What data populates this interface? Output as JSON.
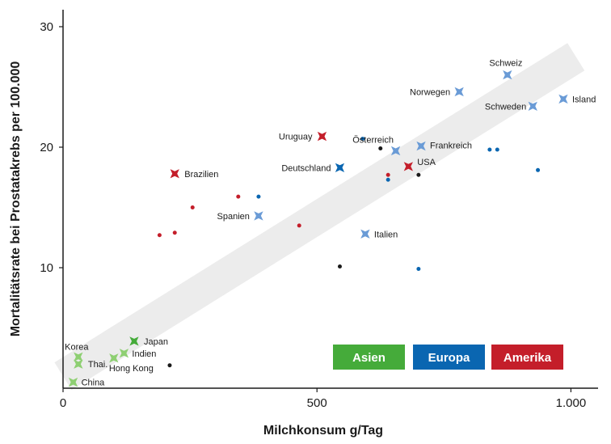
{
  "chart_data": {
    "type": "scatter",
    "title": "",
    "xlabel": "Milchkonsum g/Tag",
    "ylabel": "Mortalitätsrate bei Prostatakrebs per 100.000",
    "xlim": [
      0,
      1050
    ],
    "ylim": [
      0,
      32
    ],
    "x_ticks": [
      {
        "value": 0,
        "label": "0"
      },
      {
        "value": 500,
        "label": "500"
      },
      {
        "value": 1000,
        "label": "1.000"
      }
    ],
    "y_ticks": [
      {
        "value": 10,
        "label": "10"
      },
      {
        "value": 20,
        "label": "20"
      },
      {
        "value": 30,
        "label": "30"
      }
    ],
    "grid": false,
    "trend_band": {
      "from": [
        0,
        1.0
      ],
      "to": [
        1010,
        27.5
      ],
      "color": "#ececec"
    },
    "legend": {
      "placement": "bottom-right",
      "items": [
        {
          "label": "Asien",
          "color": "#45ab3a"
        },
        {
          "label": "Europa",
          "color": "#0a66b1"
        },
        {
          "label": "Amerika",
          "color": "#c41e2a"
        }
      ]
    },
    "labeled_points": [
      {
        "name": "Korea",
        "x": 30,
        "y": 2.6,
        "color": "#8ecf72"
      },
      {
        "name": "Thai.",
        "x": 30,
        "y": 2.0,
        "color": "#8ecf72"
      },
      {
        "name": "China",
        "x": 20,
        "y": 0.5,
        "color": "#8ecf72"
      },
      {
        "name": "Japan",
        "x": 140,
        "y": 3.9,
        "color": "#45ab3a"
      },
      {
        "name": "Indien",
        "x": 120,
        "y": 2.9,
        "color": "#8ecf72"
      },
      {
        "name": "Hong Kong",
        "x": 100,
        "y": 2.5,
        "color": "#8ecf72"
      },
      {
        "name": "Brazilien",
        "x": 220,
        "y": 17.8,
        "color": "#c41e2a"
      },
      {
        "name": "Uruguay",
        "x": 510,
        "y": 20.9,
        "color": "#c41e2a"
      },
      {
        "name": "USA",
        "x": 680,
        "y": 18.4,
        "color": "#c41e2a"
      },
      {
        "name": "Deutschland",
        "x": 545,
        "y": 18.3,
        "color": "#0a66b1"
      },
      {
        "name": "Spanien",
        "x": 385,
        "y": 14.3,
        "color": "#6a9bd6"
      },
      {
        "name": "Italien",
        "x": 595,
        "y": 12.8,
        "color": "#6a9bd6"
      },
      {
        "name": "Österreich",
        "x": 655,
        "y": 19.7,
        "color": "#6a9bd6"
      },
      {
        "name": "Frankreich",
        "x": 705,
        "y": 20.1,
        "color": "#6a9bd6"
      },
      {
        "name": "Norwegen",
        "x": 780,
        "y": 24.6,
        "color": "#6a9bd6"
      },
      {
        "name": "Schweiz",
        "x": 875,
        "y": 26.0,
        "color": "#6a9bd6"
      },
      {
        "name": "Schweden",
        "x": 925,
        "y": 23.4,
        "color": "#6a9bd6"
      },
      {
        "name": "Island",
        "x": 985,
        "y": 24.0,
        "color": "#6a9bd6"
      }
    ],
    "dots": [
      {
        "x": 190,
        "y": 12.7,
        "color": "#c41e2a"
      },
      {
        "x": 220,
        "y": 12.9,
        "color": "#c41e2a"
      },
      {
        "x": 255,
        "y": 15.0,
        "color": "#c41e2a"
      },
      {
        "x": 345,
        "y": 15.9,
        "color": "#c41e2a"
      },
      {
        "x": 465,
        "y": 13.5,
        "color": "#c41e2a"
      },
      {
        "x": 640,
        "y": 17.7,
        "color": "#c41e2a"
      },
      {
        "x": 385,
        "y": 15.9,
        "color": "#0a66b1"
      },
      {
        "x": 590,
        "y": 20.7,
        "color": "#0a66b1"
      },
      {
        "x": 640,
        "y": 17.3,
        "color": "#0a66b1"
      },
      {
        "x": 700,
        "y": 9.9,
        "color": "#0a66b1"
      },
      {
        "x": 840,
        "y": 19.8,
        "color": "#0a66b1"
      },
      {
        "x": 855,
        "y": 19.8,
        "color": "#0a66b1"
      },
      {
        "x": 935,
        "y": 18.1,
        "color": "#0a66b1"
      },
      {
        "x": 210,
        "y": 1.9,
        "color": "#1a1a1a"
      },
      {
        "x": 545,
        "y": 10.1,
        "color": "#1a1a1a"
      },
      {
        "x": 625,
        "y": 19.9,
        "color": "#1a1a1a"
      },
      {
        "x": 700,
        "y": 17.7,
        "color": "#1a1a1a"
      }
    ]
  }
}
